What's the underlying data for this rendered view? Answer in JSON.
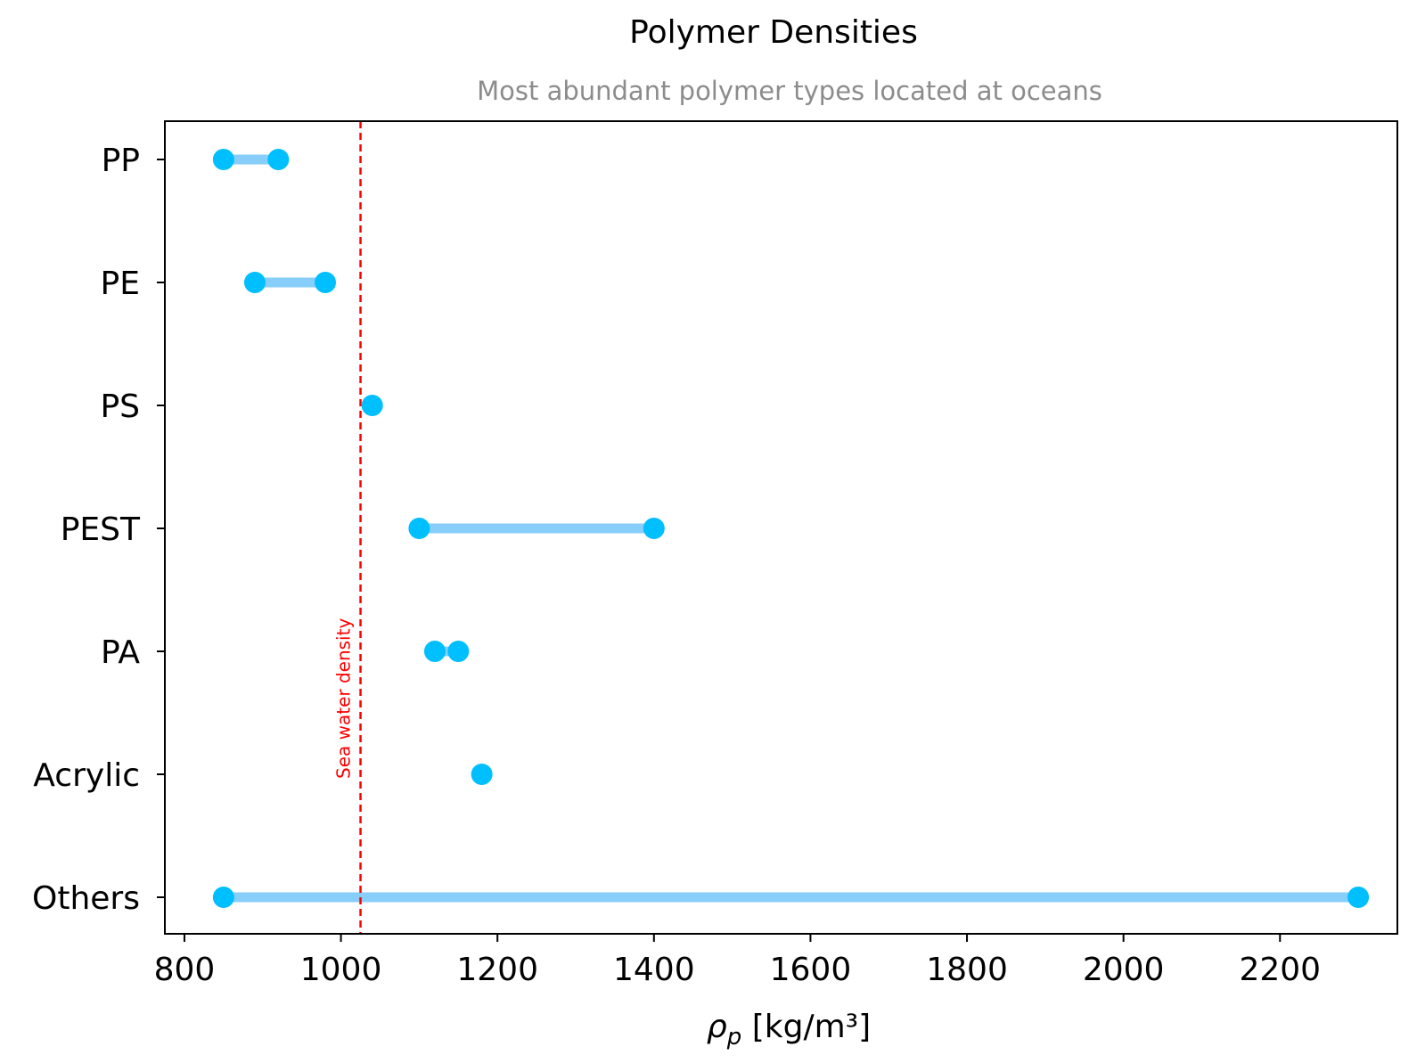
{
  "chart_data": {
    "type": "dumbbell",
    "title": "Polymer Densities",
    "subtitle": "Most abundant polymer types located at oceans",
    "xlabel": "ρp [kg/m³]",
    "xlabel_main": "ρ",
    "xlabel_sub": "p",
    "xlabel_rest": " [kg/m³]",
    "xlim": [
      775,
      2350
    ],
    "xticks": [
      800,
      1000,
      1200,
      1400,
      1600,
      1800,
      2000,
      2200
    ],
    "categories": [
      "PP",
      "PE",
      "PS",
      "PEST",
      "PA",
      "Acrylic",
      "Others"
    ],
    "ranges": [
      {
        "name": "PP",
        "min": 850,
        "max": 920
      },
      {
        "name": "PE",
        "min": 890,
        "max": 980
      },
      {
        "name": "PS",
        "min": 1040,
        "max": 1040
      },
      {
        "name": "PEST",
        "min": 1100,
        "max": 1400
      },
      {
        "name": "PA",
        "min": 1120,
        "max": 1150
      },
      {
        "name": "Acrylic",
        "min": 1180,
        "max": 1180
      },
      {
        "name": "Others",
        "min": 850,
        "max": 2300
      }
    ],
    "reference_line": {
      "value": 1025,
      "label": "Sea water density",
      "color": "#ff0000",
      "style": "dashed"
    },
    "colors": {
      "marker": "#00bfff",
      "line": "#87cefa"
    },
    "grid": false
  }
}
